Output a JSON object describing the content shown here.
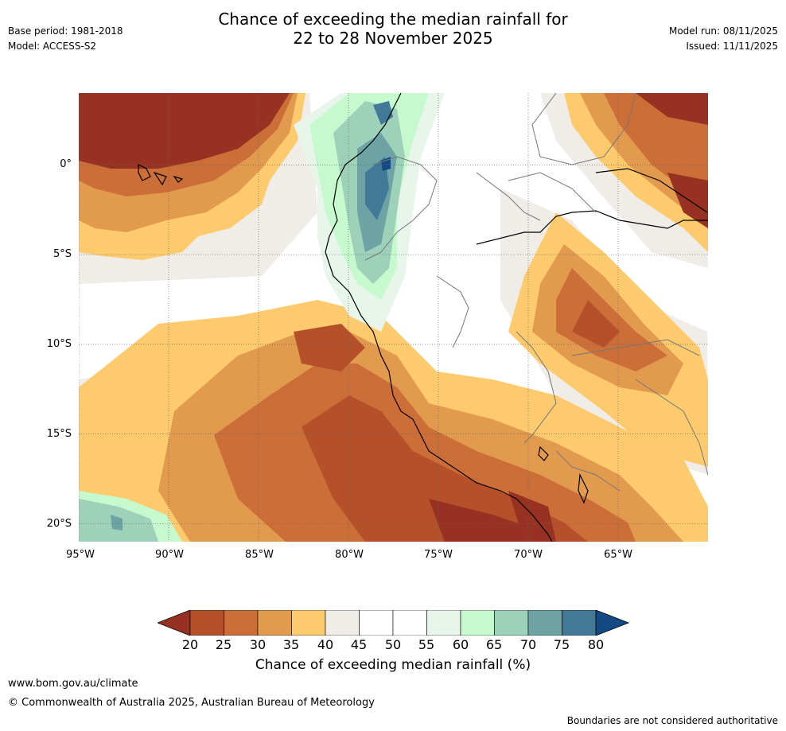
{
  "header": {
    "title_line1": "Chance of exceeding the median rainfall for",
    "title_line2": "22 to 28 November 2025",
    "base_period": "Base period: 1981-2018",
    "model": "Model: ACCESS-S2",
    "model_run": "Model run: 08/11/2025",
    "issued": "Issued: 11/11/2025"
  },
  "map": {
    "lat_labels": [
      "0°",
      "5°S",
      "10°S",
      "15°S",
      "20°S"
    ],
    "lon_labels": [
      "95°W",
      "90°W",
      "85°W",
      "80°W",
      "75°W",
      "70°W",
      "65°W"
    ],
    "lat_values": [
      0,
      -5,
      -10,
      -15,
      -20
    ],
    "lon_values": [
      -95,
      -90,
      -85,
      -80,
      -75,
      -70,
      -65
    ],
    "extent": {
      "lon_min": -95,
      "lon_max": -60,
      "lat_min": -21,
      "lat_max": 4
    }
  },
  "colorbar": {
    "ticks": [
      "20",
      "25",
      "30",
      "35",
      "40",
      "45",
      "50",
      "55",
      "60",
      "65",
      "70",
      "75",
      "80"
    ],
    "colors": [
      "#973222",
      "#b5502b",
      "#cc6e38",
      "#e19a4e",
      "#fdcb6e",
      "#f0ece8",
      "#ffffff",
      "#ffffff",
      "#e8f5ea",
      "#c7f9cf",
      "#9dd1b9",
      "#6da3a5",
      "#437998",
      "#134a84"
    ],
    "label": "Chance of exceeding median rainfall (%)"
  },
  "footer": {
    "url": "www.bom.gov.au/climate",
    "copyright": "© Commonwealth of Australia 2025, Australian Bureau of Meteorology",
    "disclaimer": "Boundaries are not considered authoritative"
  }
}
